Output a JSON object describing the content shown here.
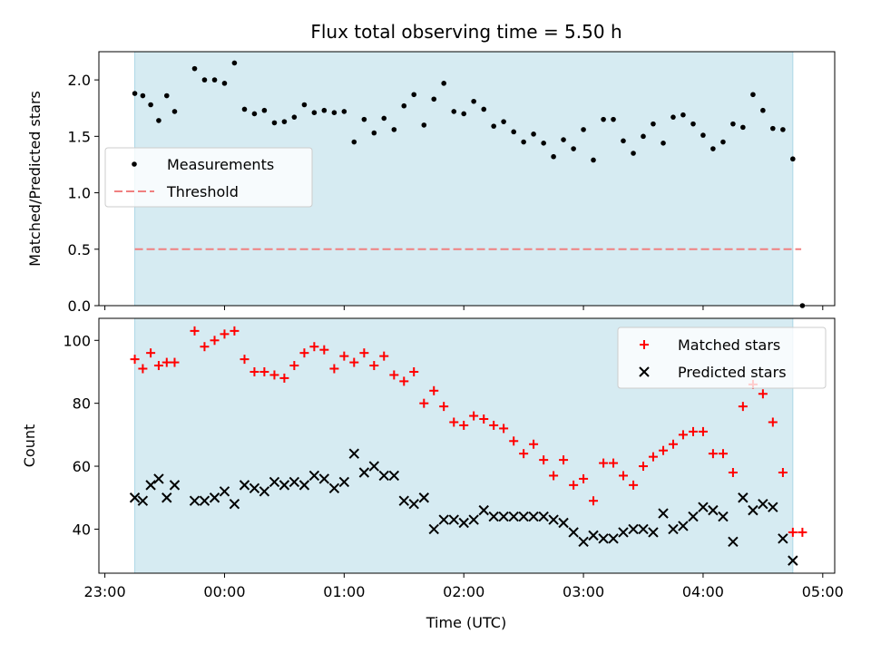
{
  "chart_data": {
    "type": "scatter",
    "title": "Flux total observing time = 5.50 h",
    "shared_x": {
      "label": "Time (UTC)",
      "unit": "hours relative to 00:00 UTC",
      "range": [
        -1.05,
        5.1
      ],
      "ticks": [
        {
          "value": -1,
          "label": "23:00"
        },
        {
          "value": 0,
          "label": "00:00"
        },
        {
          "value": 1,
          "label": "01:00"
        },
        {
          "value": 2,
          "label": "02:00"
        },
        {
          "value": 3,
          "label": "03:00"
        },
        {
          "value": 4,
          "label": "04:00"
        },
        {
          "value": 5,
          "label": "05:00"
        }
      ],
      "shaded_interval": [
        -0.75,
        4.75
      ]
    },
    "top": {
      "ylabel": "Matched/Predicted stars",
      "ylim": [
        0,
        2.25
      ],
      "yticks": [
        {
          "value": 0,
          "label": "0.0"
        },
        {
          "value": 0.5,
          "label": "0.5"
        },
        {
          "value": 1,
          "label": "1.0"
        },
        {
          "value": 1.5,
          "label": "1.5"
        },
        {
          "value": 2,
          "label": "2.0"
        }
      ],
      "threshold": {
        "name": "Threshold",
        "value": 0.5,
        "x_range": [
          -0.75,
          4.82
        ],
        "color": "#f08080"
      },
      "legend": [
        "Measurements",
        "Threshold"
      ],
      "measurements": {
        "name": "Measurements",
        "x": [
          -0.75,
          -0.683,
          -0.617,
          -0.55,
          -0.483,
          -0.417,
          -0.25,
          -0.167,
          -0.083,
          0,
          0.083,
          0.167,
          0.25,
          0.333,
          0.417,
          0.5,
          0.583,
          0.667,
          0.75,
          0.833,
          0.917,
          1,
          1.083,
          1.167,
          1.25,
          1.333,
          1.417,
          1.5,
          1.583,
          1.667,
          1.75,
          1.833,
          1.917,
          2,
          2.083,
          2.167,
          2.25,
          2.333,
          2.417,
          2.5,
          2.583,
          2.667,
          2.75,
          2.833,
          2.917,
          3,
          3.083,
          3.167,
          3.25,
          3.333,
          3.417,
          3.5,
          3.583,
          3.667,
          3.75,
          3.833,
          3.917,
          4,
          4.083,
          4.167,
          4.25,
          4.333,
          4.417,
          4.5,
          4.583,
          4.667,
          4.75,
          4.83
        ],
        "y": [
          1.88,
          1.86,
          1.78,
          1.64,
          1.86,
          1.72,
          2.1,
          2.0,
          2.0,
          1.97,
          2.15,
          1.74,
          1.7,
          1.73,
          1.62,
          1.63,
          1.67,
          1.78,
          1.71,
          1.73,
          1.71,
          1.72,
          1.45,
          1.65,
          1.53,
          1.66,
          1.56,
          1.77,
          1.87,
          1.6,
          1.83,
          1.97,
          1.72,
          1.7,
          1.81,
          1.74,
          1.59,
          1.63,
          1.54,
          1.45,
          1.52,
          1.44,
          1.32,
          1.47,
          1.39,
          1.56,
          1.29,
          1.65,
          1.65,
          1.46,
          1.35,
          1.5,
          1.61,
          1.44,
          1.67,
          1.69,
          1.61,
          1.51,
          1.39,
          1.45,
          1.61,
          1.58,
          1.87,
          1.73,
          1.57,
          1.56,
          1.3,
          0.0
        ]
      }
    },
    "bottom": {
      "ylabel": "Count",
      "ylim": [
        26,
        107
      ],
      "yticks": [
        {
          "value": 40,
          "label": "40"
        },
        {
          "value": 60,
          "label": "60"
        },
        {
          "value": 80,
          "label": "80"
        },
        {
          "value": 100,
          "label": "100"
        }
      ],
      "legend": [
        "Matched stars",
        "Predicted stars"
      ],
      "series": [
        {
          "name": "Matched stars",
          "marker": "+",
          "color": "#ff0000",
          "x": [
            -0.75,
            -0.683,
            -0.617,
            -0.55,
            -0.483,
            -0.417,
            -0.25,
            -0.167,
            -0.083,
            0,
            0.083,
            0.167,
            0.25,
            0.333,
            0.417,
            0.5,
            0.583,
            0.667,
            0.75,
            0.833,
            0.917,
            1,
            1.083,
            1.167,
            1.25,
            1.333,
            1.417,
            1.5,
            1.583,
            1.667,
            1.75,
            1.833,
            1.917,
            2,
            2.083,
            2.167,
            2.25,
            2.333,
            2.417,
            2.5,
            2.583,
            2.667,
            2.75,
            2.833,
            2.917,
            3,
            3.083,
            3.167,
            3.25,
            3.333,
            3.417,
            3.5,
            3.583,
            3.667,
            3.75,
            3.833,
            3.917,
            4,
            4.083,
            4.167,
            4.25,
            4.333,
            4.417,
            4.5,
            4.583,
            4.667,
            4.75,
            4.83
          ],
          "y": [
            94,
            91,
            96,
            92,
            93,
            93,
            103,
            98,
            100,
            102,
            103,
            94,
            90,
            90,
            89,
            88,
            92,
            96,
            98,
            97,
            91,
            95,
            93,
            96,
            92,
            95,
            89,
            87,
            90,
            80,
            84,
            79,
            74,
            73,
            76,
            75,
            73,
            72,
            68,
            64,
            67,
            62,
            57,
            62,
            54,
            56,
            49,
            61,
            61,
            57,
            54,
            60,
            63,
            65,
            67,
            70,
            71,
            71,
            64,
            64,
            58,
            79,
            86,
            83,
            74,
            58,
            39,
            39
          ]
        },
        {
          "name": "Predicted stars",
          "marker": "x",
          "color": "#000000",
          "x": [
            -0.75,
            -0.683,
            -0.617,
            -0.55,
            -0.483,
            -0.417,
            -0.25,
            -0.167,
            -0.083,
            0,
            0.083,
            0.167,
            0.25,
            0.333,
            0.417,
            0.5,
            0.583,
            0.667,
            0.75,
            0.833,
            0.917,
            1,
            1.083,
            1.167,
            1.25,
            1.333,
            1.417,
            1.5,
            1.583,
            1.667,
            1.75,
            1.833,
            1.917,
            2,
            2.083,
            2.167,
            2.25,
            2.333,
            2.417,
            2.5,
            2.583,
            2.667,
            2.75,
            2.833,
            2.917,
            3,
            3.083,
            3.167,
            3.25,
            3.333,
            3.417,
            3.5,
            3.583,
            3.667,
            3.75,
            3.833,
            3.917,
            4,
            4.083,
            4.167,
            4.25,
            4.333,
            4.417,
            4.5,
            4.583,
            4.667,
            4.75
          ],
          "y": [
            50,
            49,
            54,
            56,
            50,
            54,
            49,
            49,
            50,
            52,
            48,
            54,
            53,
            52,
            55,
            54,
            55,
            54,
            57,
            56,
            53,
            55,
            64,
            58,
            60,
            57,
            57,
            49,
            48,
            50,
            40,
            43,
            43,
            42,
            43,
            46,
            44,
            44,
            44,
            44,
            44,
            44,
            43,
            42,
            39,
            36,
            38,
            37,
            37,
            39,
            40,
            40,
            39,
            45,
            40,
            41,
            44,
            47,
            46,
            44,
            36,
            50,
            46,
            48,
            47,
            37,
            30
          ]
        }
      ]
    }
  }
}
